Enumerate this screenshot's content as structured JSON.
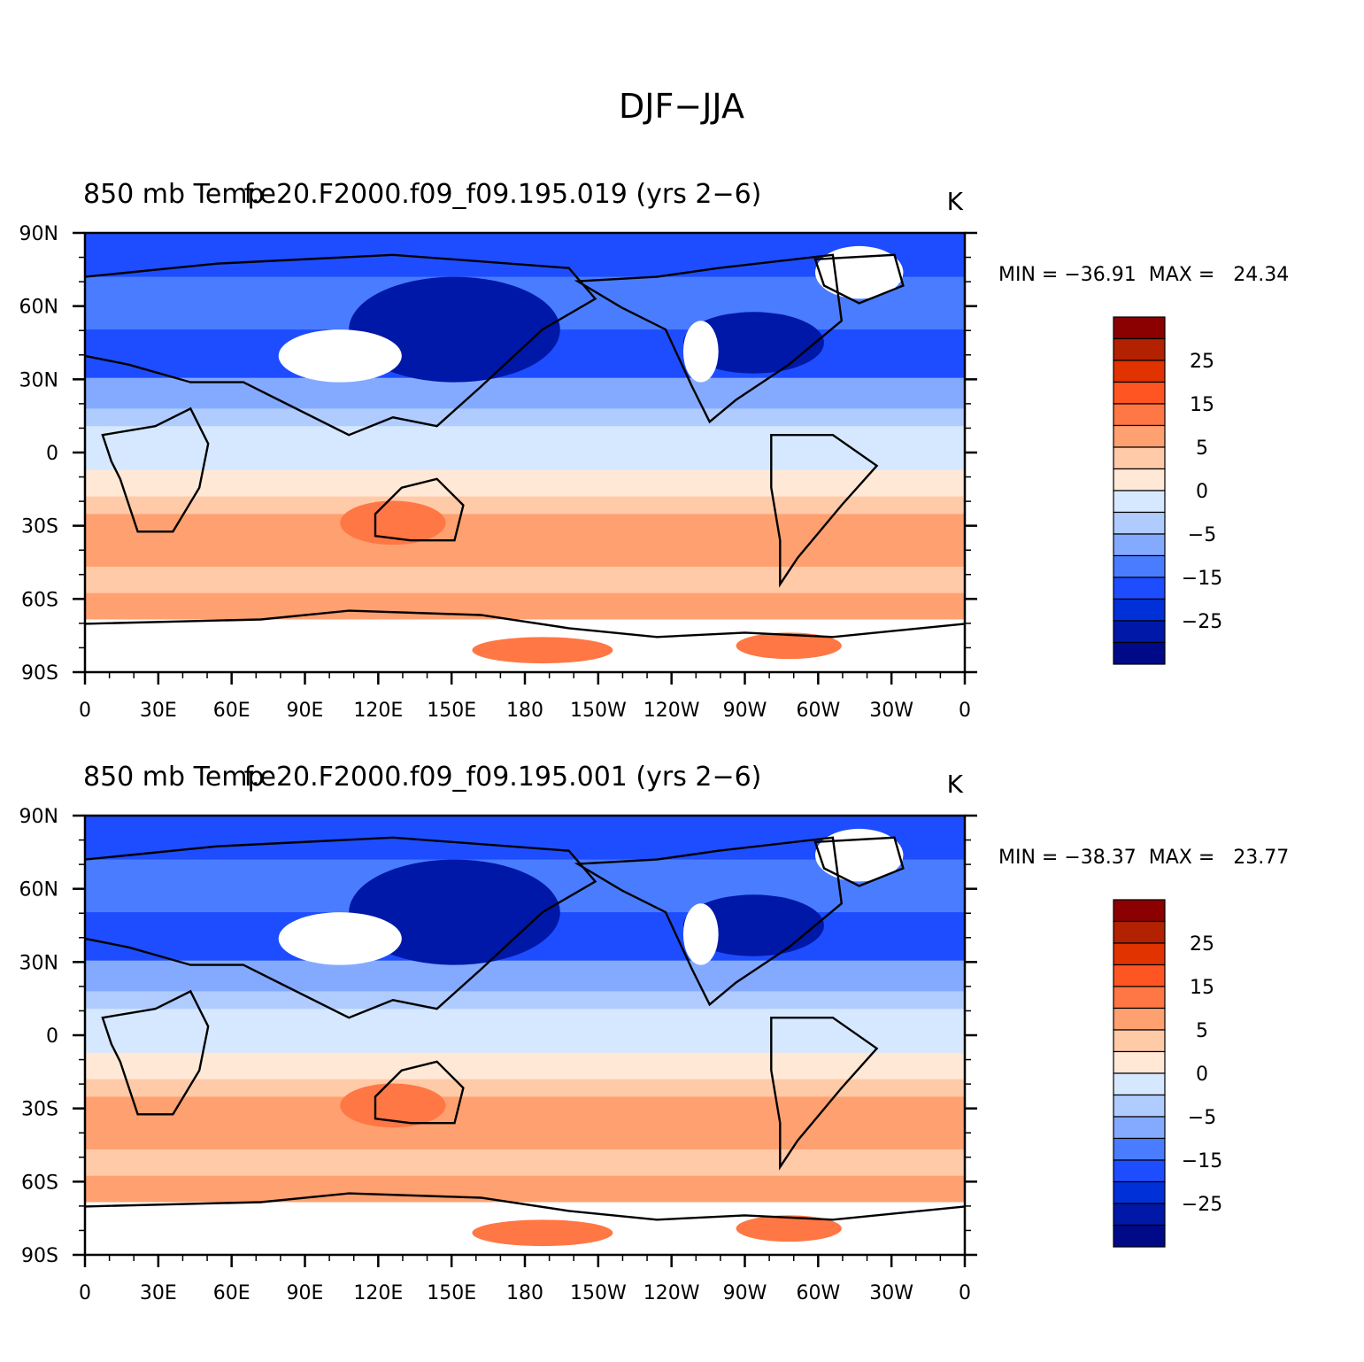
{
  "figure": {
    "title": "DJF−JJA"
  },
  "panels": [
    {
      "left_title": "850 mb Temp",
      "center_title": "f.e20.F2000.f09_f09.195.019 (yrs 2−6)",
      "units": "K",
      "min_max": "MIN = −36.91  MAX =   24.34"
    },
    {
      "left_title": "850 mb Temp",
      "center_title": "f.e20.F2000.f09_f09.195.001 (yrs 2−6)",
      "units": "K",
      "min_max": "MIN = −38.37  MAX =   23.77"
    }
  ],
  "map": {
    "lat_labels": [
      "90N",
      "60N",
      "30N",
      "0",
      "30S",
      "60S",
      "90S"
    ],
    "lon_labels": [
      "0",
      "30E",
      "60E",
      "90E",
      "120E",
      "150E",
      "180",
      "150W",
      "120W",
      "90W",
      "60W",
      "30W",
      "0"
    ],
    "lat_range": [
      -90,
      90
    ],
    "lon_range": [
      0,
      360
    ],
    "ocean_land_note": ""
  },
  "colorbar": {
    "labels": [
      "25",
      "15",
      "5",
      "0",
      "−5",
      "−15",
      "−25"
    ],
    "colors": [
      "#8b0000",
      "#b22200",
      "#e03300",
      "#ff5522",
      "#ff7744",
      "#ffa070",
      "#ffcaa8",
      "#ffe8d6",
      "#d6e8ff",
      "#b0ccff",
      "#84aaff",
      "#4a7cff",
      "#1e4dff",
      "#0030d8",
      "#0018a8",
      "#000a88"
    ]
  },
  "chart_data": [
    {
      "type": "heatmap",
      "title": "f.e20.F2000.f09_f09.195.019 (yrs 2−6)",
      "variable": "850 mb Temp",
      "units": "K",
      "min": -36.91,
      "max": 24.34,
      "contour_levels": [
        -35,
        -30,
        -25,
        -20,
        -15,
        -10,
        -5,
        0,
        5,
        10,
        15,
        20,
        25,
        30
      ],
      "colorbar_tick_labels": [
        "25",
        "15",
        "5",
        "0",
        "−5",
        "−15",
        "−25"
      ],
      "xlim": [
        0,
        360
      ],
      "ylim": [
        -90,
        90
      ]
    },
    {
      "type": "heatmap",
      "title": "f.e20.F2000.f09_f09.195.001 (yrs 2−6)",
      "variable": "850 mb Temp",
      "units": "K",
      "min": -38.37,
      "max": 23.77,
      "contour_levels": [
        -35,
        -30,
        -25,
        -20,
        -15,
        -10,
        -5,
        0,
        5,
        10,
        15,
        20,
        25,
        30
      ],
      "colorbar_tick_labels": [
        "25",
        "15",
        "5",
        "0",
        "−5",
        "−15",
        "−25"
      ],
      "xlim": [
        0,
        360
      ],
      "ylim": [
        -90,
        90
      ]
    }
  ]
}
